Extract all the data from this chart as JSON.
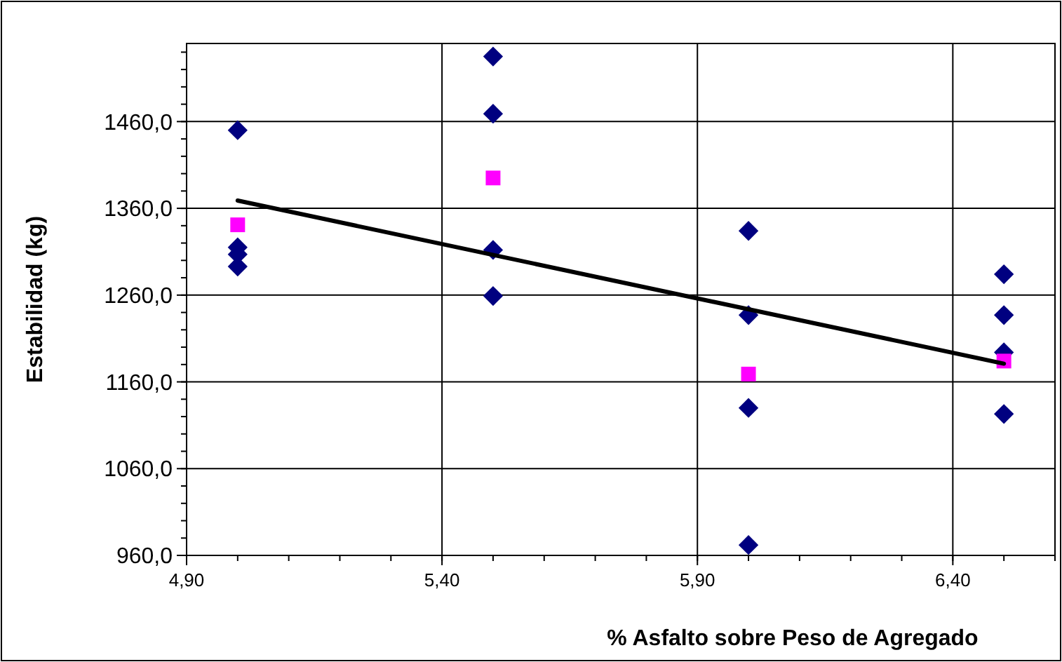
{
  "chart_data": {
    "type": "scatter",
    "xlabel": "% Asfalto sobre Peso de Agregado",
    "ylabel": "Estabilidad (kg)",
    "xlim": [
      4.9,
      6.6
    ],
    "ylim": [
      960,
      1550
    ],
    "xticks": [
      {
        "value": 4.9,
        "label": "4,90"
      },
      {
        "value": 5.4,
        "label": "5,40"
      },
      {
        "value": 5.9,
        "label": "5,90"
      },
      {
        "value": 6.4,
        "label": "6,40"
      }
    ],
    "yticks": [
      {
        "value": 960,
        "label": "960,0"
      },
      {
        "value": 1060,
        "label": "1060,0"
      },
      {
        "value": 1160,
        "label": "1160,0"
      },
      {
        "value": 1260,
        "label": "1260,0"
      },
      {
        "value": 1360,
        "label": "1360,0"
      },
      {
        "value": 1460,
        "label": "1460,0"
      }
    ],
    "grid": true,
    "series": [
      {
        "marker": "diamond",
        "color": "#000080",
        "x": [
          5.0,
          5.0,
          5.0,
          5.0,
          5.5,
          5.5,
          5.5,
          5.5,
          6.0,
          6.0,
          6.0,
          6.0,
          6.5,
          6.5,
          6.5,
          6.5
        ],
        "values": [
          1450,
          1315,
          1307,
          1293,
          1535,
          1469,
          1312,
          1259,
          1334,
          1237,
          1130,
          972,
          1284,
          1237,
          1194,
          1123
        ]
      },
      {
        "marker": "square",
        "color": "#ff00ff",
        "x": [
          5.0,
          5.5,
          6.0,
          6.5
        ],
        "values": [
          1341,
          1395,
          1169,
          1184
        ]
      },
      {
        "type": "line",
        "marker": "none",
        "color": "#000000",
        "x": [
          5.0,
          6.5
        ],
        "values": [
          1369,
          1181
        ]
      }
    ]
  }
}
